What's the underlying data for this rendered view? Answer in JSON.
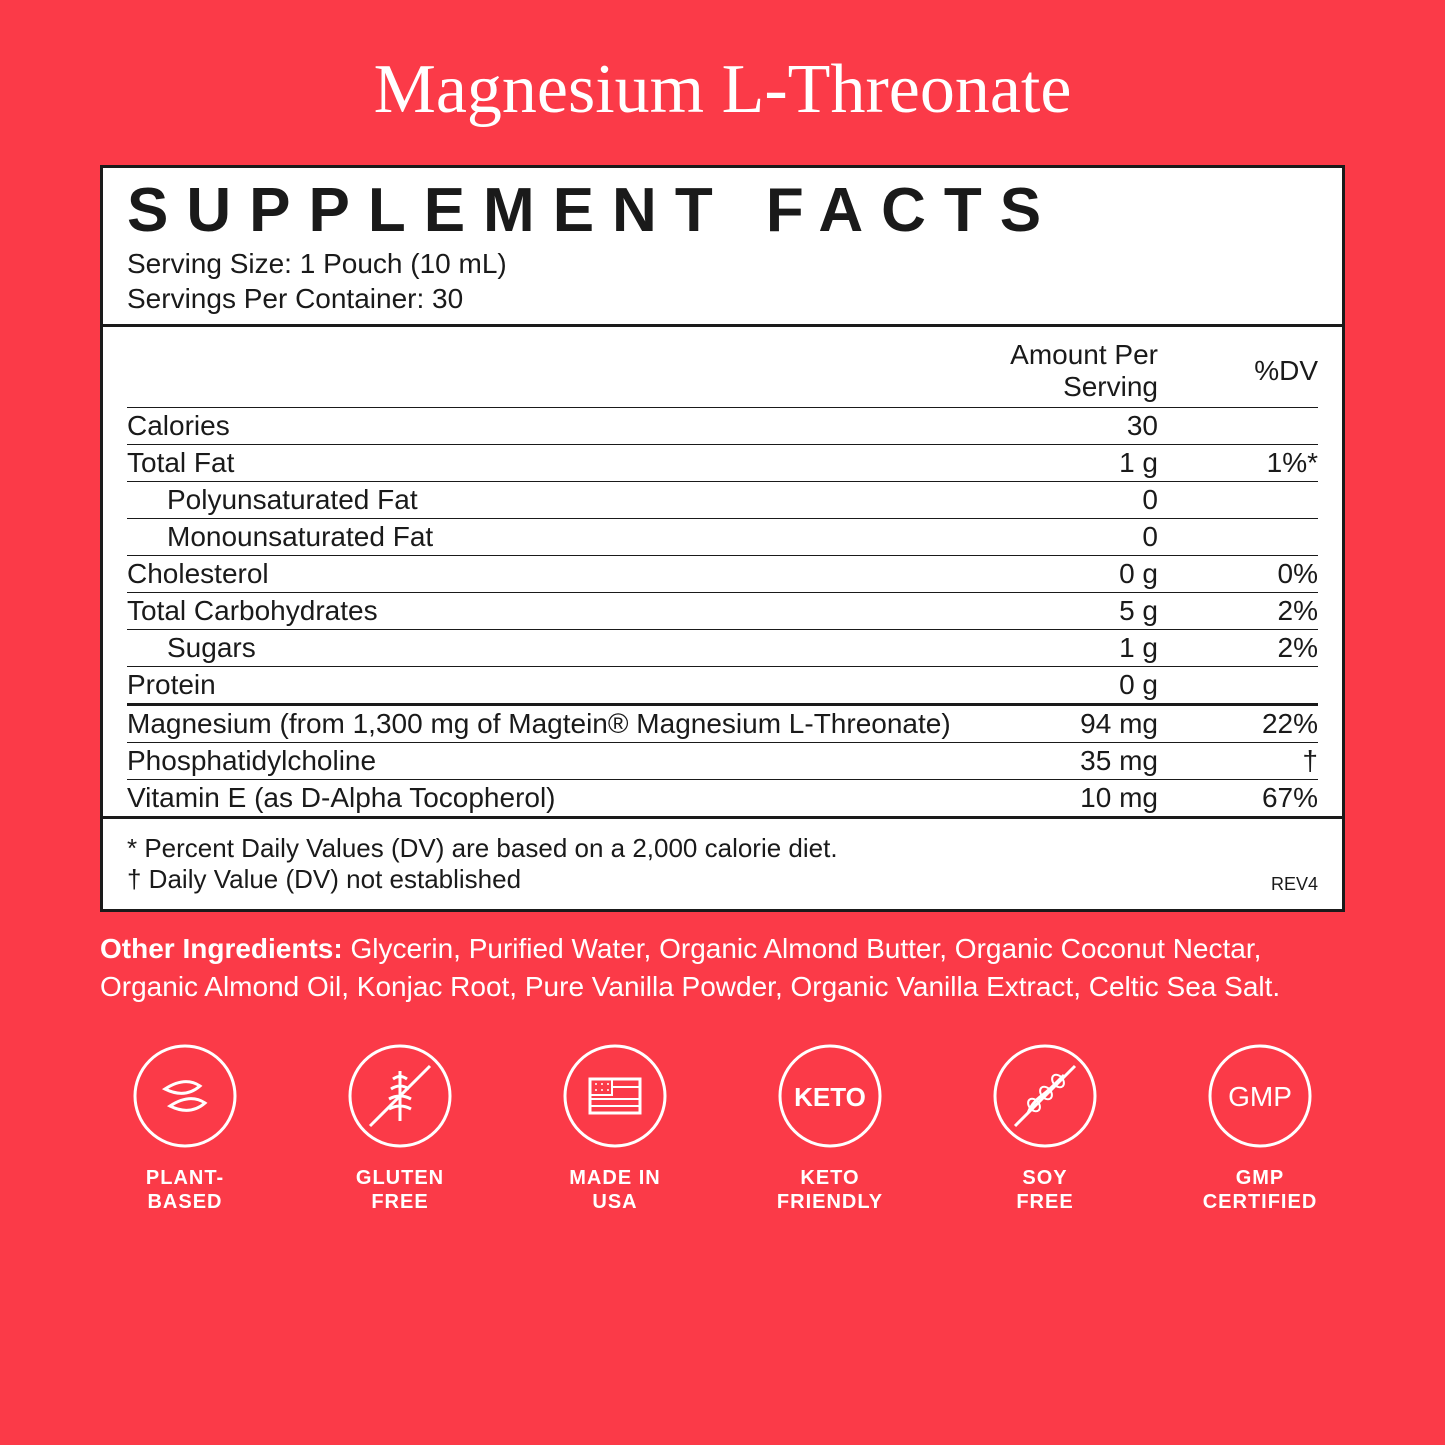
{
  "title": "Magnesium L-Threonate",
  "panel": {
    "heading": "SUPPLEMENT FACTS",
    "serving_size": "Serving Size: 1 Pouch (10 mL)",
    "servings_per": "Servings Per Container: 30",
    "col_amount": "Amount Per Serving",
    "col_dv": "%DV",
    "rows_a": [
      {
        "name": "Calories",
        "amt": "30",
        "dv": ""
      },
      {
        "name": "Total Fat",
        "amt": "1 g",
        "dv": "1%*"
      },
      {
        "name": "Polyunsaturated Fat",
        "amt": "0",
        "dv": "",
        "indent": true
      },
      {
        "name": "Monounsaturated Fat",
        "amt": "0",
        "dv": "",
        "indent": true
      },
      {
        "name": "Cholesterol",
        "amt": "0 g",
        "dv": "0%"
      },
      {
        "name": "Total Carbohydrates",
        "amt": "5 g",
        "dv": "2%"
      },
      {
        "name": "Sugars",
        "amt": "1 g",
        "dv": "2%",
        "indent": true
      },
      {
        "name": "Protein",
        "amt": "0 g",
        "dv": ""
      }
    ],
    "rows_b": [
      {
        "name": "Magnesium (from 1,300 mg of Magtein® Magnesium L-Threonate)",
        "amt": "94 mg",
        "dv": "22%"
      },
      {
        "name": "Phosphatidylcholine",
        "amt": "35 mg",
        "dv": "†"
      },
      {
        "name": "Vitamin E (as D-Alpha Tocopherol)",
        "amt": "10 mg",
        "dv": "67%"
      }
    ],
    "foot1": "* Percent Daily Values (DV) are based on a 2,000 calorie diet.",
    "foot2": "† Daily Value (DV) not established",
    "rev": "REV4"
  },
  "other_label": "Other Ingredients:",
  "other_text": " Glycerin, Purified Water, Organic Almond Butter, Organic Coconut Nectar, Organic Almond Oil, Konjac Root, Pure Vanilla Powder, Organic Vanilla Extract, Celtic Sea Salt.",
  "badges": [
    {
      "id": "plant",
      "label": "PLANT-\nBASED"
    },
    {
      "id": "gluten",
      "label": "GLUTEN\nFREE"
    },
    {
      "id": "usa",
      "label": "MADE IN\nUSA"
    },
    {
      "id": "keto",
      "label": "KETO\nFRIENDLY"
    },
    {
      "id": "soy",
      "label": "SOY\nFREE"
    },
    {
      "id": "gmp",
      "label": "GMP\nCERTIFIED"
    }
  ],
  "colors": {
    "bg": "#fb3a48",
    "ink": "#1a1a1a",
    "paper": "#ffffff"
  }
}
